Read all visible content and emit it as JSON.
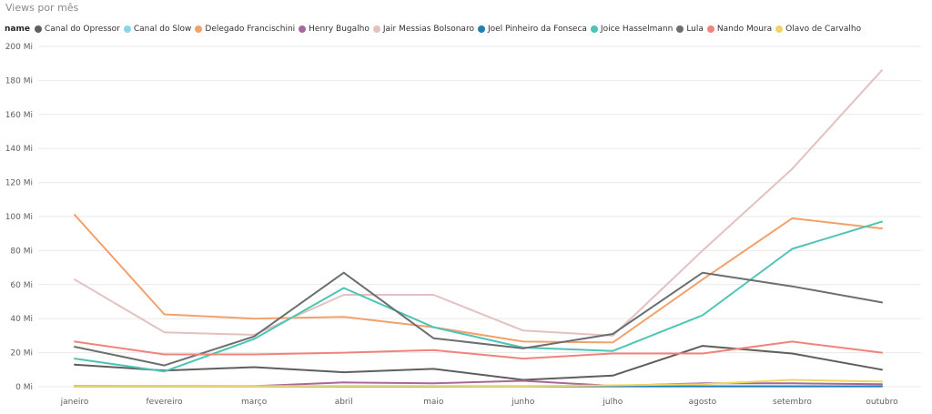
{
  "chart_data": {
    "type": "line",
    "title": "Views por mês",
    "legend_title": "name",
    "legend_position": "top-left",
    "grid": true,
    "categories": [
      "janeiro",
      "fevereiro",
      "março",
      "abril",
      "maio",
      "junho",
      "julho",
      "agosto",
      "setembro",
      "outubro"
    ],
    "ylim": [
      0,
      200
    ],
    "yticks": [
      {
        "value": 0,
        "label": "0 Mi"
      },
      {
        "value": 20,
        "label": "20 Mi"
      },
      {
        "value": 40,
        "label": "40 Mi"
      },
      {
        "value": 60,
        "label": "60 Mi"
      },
      {
        "value": 80,
        "label": "80 Mi"
      },
      {
        "value": 100,
        "label": "100 Mi"
      },
      {
        "value": 120,
        "label": "120 Mi"
      },
      {
        "value": 140,
        "label": "140 Mi"
      },
      {
        "value": 160,
        "label": "160 Mi"
      },
      {
        "value": 180,
        "label": "180 Mi"
      },
      {
        "value": 200,
        "label": "200 Mi"
      }
    ],
    "series": [
      {
        "name": "Canal do Opressor",
        "color": "#605e5c",
        "values": [
          13,
          9.5,
          11.5,
          8.5,
          10.5,
          4,
          6.5,
          24,
          19.5,
          10
        ]
      },
      {
        "name": "Canal do Slow",
        "color": "#8ad4eb",
        "values": [
          0.3,
          0.3,
          0.3,
          0.3,
          0.3,
          0.3,
          0.3,
          0.3,
          0.3,
          0.3
        ]
      },
      {
        "name": "Delegado Francischini",
        "color": "#f2a16b",
        "values": [
          101,
          42.5,
          40,
          41,
          35,
          26.5,
          26,
          63,
          99,
          93
        ]
      },
      {
        "name": "Henry Bugalho",
        "color": "#a66999",
        "values": [
          0.5,
          0.4,
          0.3,
          2.5,
          2,
          3.5,
          0.5,
          2,
          2,
          1.5
        ]
      },
      {
        "name": "Jair Messias Bolsonaro",
        "color": "#e3c1c1",
        "values": [
          63,
          32,
          30.5,
          54,
          54,
          33,
          30,
          80,
          128,
          186
        ]
      },
      {
        "name": "Joel Pinheiro da Fonseca",
        "color": "#217fb4",
        "values": [
          0.2,
          0.2,
          0.2,
          0.2,
          0.2,
          0.2,
          0.2,
          0.2,
          0.2,
          0.2
        ]
      },
      {
        "name": "Joice Hasselmann",
        "color": "#4ec4b4",
        "values": [
          16.5,
          9,
          28,
          58,
          35,
          23,
          21,
          42,
          81,
          97
        ]
      },
      {
        "name": "Lula",
        "color": "#6c6f70",
        "values": [
          23.5,
          12.5,
          29.5,
          67,
          28.5,
          22.5,
          31,
          67,
          59,
          49.5
        ]
      },
      {
        "name": "Nando Moura",
        "color": "#f2837b",
        "values": [
          26.5,
          19,
          19,
          20,
          21.5,
          16.5,
          19.5,
          19.5,
          26.5,
          20
        ]
      },
      {
        "name": "Olavo de Carvalho",
        "color": "#f2d462",
        "values": [
          0.3,
          0.3,
          0.3,
          0.5,
          0.5,
          0.3,
          0.8,
          1.5,
          4,
          3
        ]
      }
    ]
  }
}
